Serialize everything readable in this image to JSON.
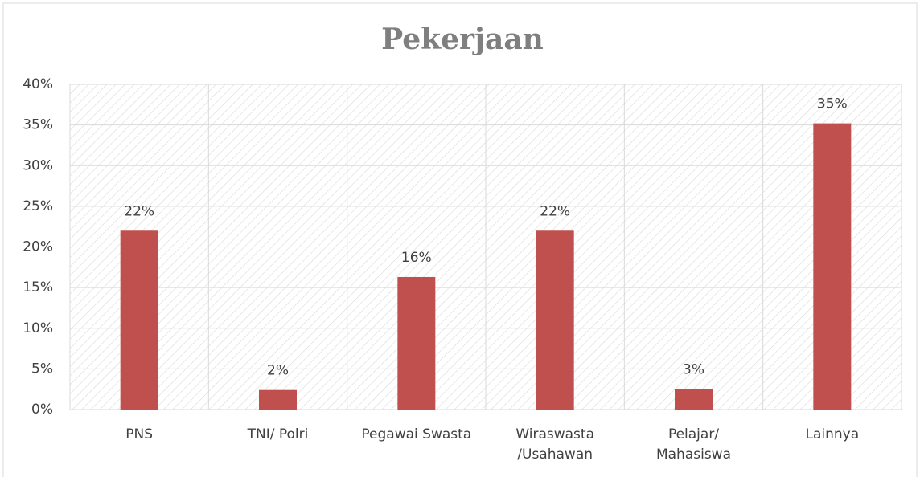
{
  "chart_data": {
    "type": "bar",
    "title": "Pekerjaan",
    "categories": [
      "PNS",
      "TNI/ Polri",
      "Pegawai Swasta",
      "Wiraswasta\n/Usahawan",
      "Pelajar/\nMahasiswa",
      "Lainnya"
    ],
    "values": [
      22,
      2.4,
      16.3,
      22,
      2.5,
      35.2
    ],
    "value_labels": [
      "22%",
      "2%",
      "16%",
      "22%",
      "3%",
      "35%"
    ],
    "color": "#c0504d",
    "ylim": [
      0,
      40
    ],
    "yticks": [
      {
        "value": 0,
        "label": "0%"
      },
      {
        "value": 5,
        "label": "5%"
      },
      {
        "value": 10,
        "label": "10%"
      },
      {
        "value": 15,
        "label": "15%"
      },
      {
        "value": 20,
        "label": "20%"
      },
      {
        "value": 25,
        "label": "25%"
      },
      {
        "value": 30,
        "label": "30%"
      },
      {
        "value": 35,
        "label": "35%"
      },
      {
        "value": 40,
        "label": "40%"
      }
    ],
    "grid": true
  }
}
